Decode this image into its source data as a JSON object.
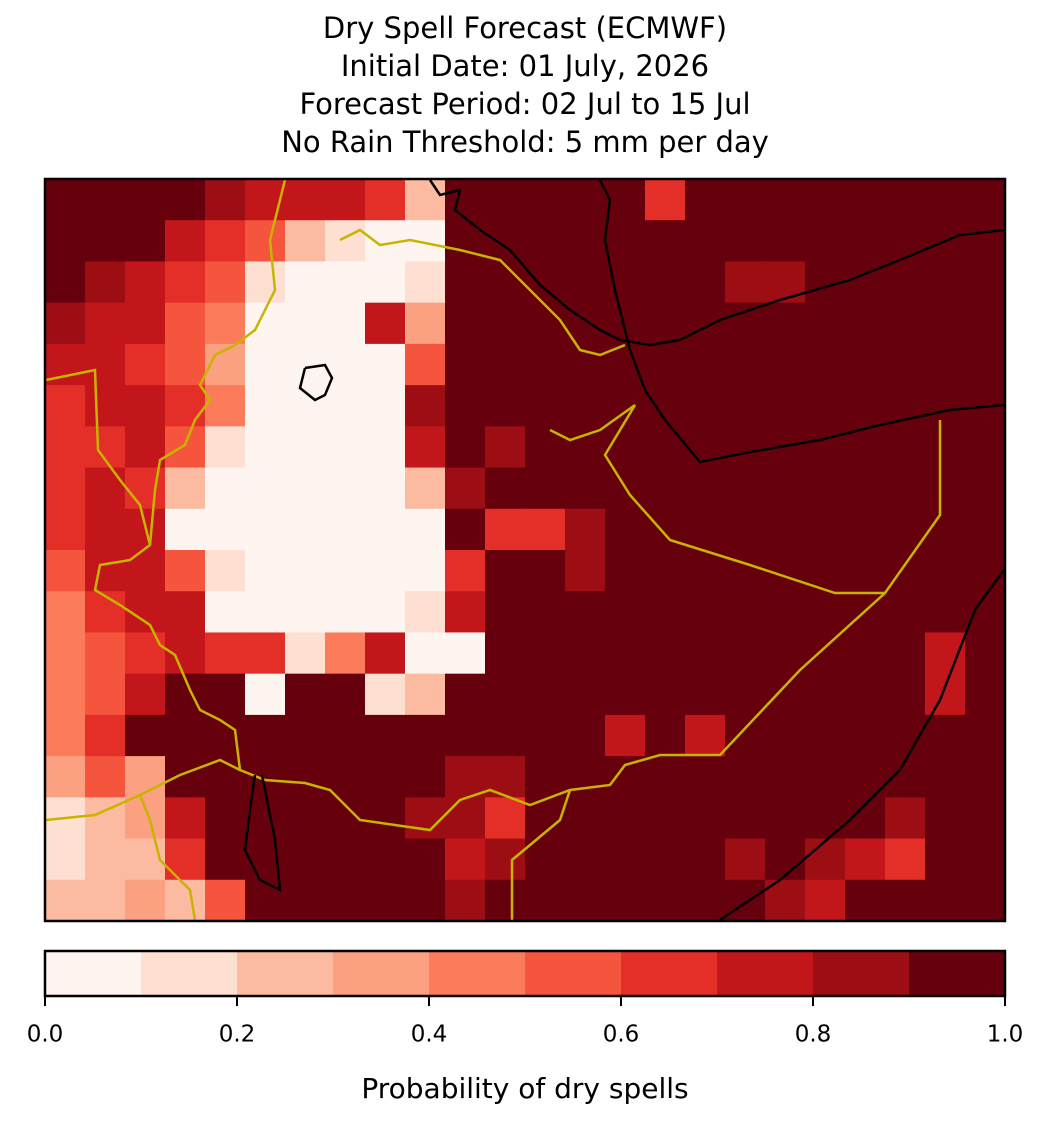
{
  "chart_data": {
    "type": "gridmap",
    "title_lines": [
      "Dry Spell Forecast (ECMWF)",
      "Initial Date: 01 July, 2026",
      "Forecast Period: 02 Jul to 15 Jul",
      "No Rain Threshold: 5 mm per day"
    ],
    "colorbar_label": "Probability of dry spells",
    "levels": [
      0,
      0.1,
      0.2,
      0.3,
      0.4,
      0.5,
      0.6,
      0.7,
      0.8,
      0.9,
      1
    ],
    "colors": [
      "#fff5f0",
      "#fee0d2",
      "#fcbba1",
      "#fca082",
      "#fb7b5b",
      "#f5553d",
      "#e32f27",
      "#c2161b",
      "#9d0d14",
      "#67000d"
    ],
    "clim": [
      0,
      1
    ],
    "cticks": [
      {
        "value": 0,
        "label": "0.0"
      },
      0.2,
      0.4,
      0.6,
      0.8,
      {
        "value": 1,
        "label": "1.0"
      }
    ],
    "grid": [
      [
        0.95,
        0.95,
        0.95,
        0.95,
        0.85,
        0.75,
        0.75,
        0.75,
        0.65,
        0.25,
        0.95,
        0.95,
        0.95,
        0.95,
        0.95,
        0.65,
        0.95,
        0.95,
        0.95,
        0.95,
        0.95,
        0.95,
        0.95,
        0.95
      ],
      [
        0.95,
        0.95,
        0.95,
        0.75,
        0.65,
        0.55,
        0.25,
        0.15,
        0.05,
        0.05,
        0.95,
        0.95,
        0.95,
        0.95,
        0.95,
        0.95,
        0.95,
        0.95,
        0.95,
        0.95,
        0.95,
        0.95,
        0.95,
        0.95
      ],
      [
        0.95,
        0.85,
        0.75,
        0.65,
        0.55,
        0.15,
        0.05,
        0.05,
        0.05,
        0.15,
        0.95,
        0.95,
        0.95,
        0.95,
        0.95,
        0.95,
        0.95,
        0.85,
        0.85,
        0.95,
        0.95,
        0.95,
        0.95,
        0.95
      ],
      [
        0.85,
        0.75,
        0.75,
        0.55,
        0.45,
        0.05,
        0.05,
        0.05,
        0.75,
        0.35,
        0.95,
        0.95,
        0.95,
        0.95,
        0.95,
        0.95,
        0.95,
        0.95,
        0.95,
        0.95,
        0.95,
        0.95,
        0.95,
        0.95
      ],
      [
        0.75,
        0.75,
        0.65,
        0.55,
        0.35,
        0.05,
        0.05,
        0.05,
        0.05,
        0.55,
        0.95,
        0.95,
        0.95,
        0.95,
        0.95,
        0.95,
        0.95,
        0.95,
        0.95,
        0.95,
        0.95,
        0.95,
        0.95,
        0.95
      ],
      [
        0.65,
        0.75,
        0.75,
        0.65,
        0.45,
        0.05,
        0.05,
        0.05,
        0.05,
        0.85,
        0.95,
        0.95,
        0.95,
        0.95,
        0.95,
        0.95,
        0.95,
        0.95,
        0.95,
        0.95,
        0.95,
        0.95,
        0.95,
        0.95
      ],
      [
        0.65,
        0.65,
        0.75,
        0.55,
        0.15,
        0.05,
        0.05,
        0.05,
        0.05,
        0.75,
        0.95,
        0.85,
        0.95,
        0.95,
        0.95,
        0.95,
        0.95,
        0.95,
        0.95,
        0.95,
        0.95,
        0.95,
        0.95,
        0.95
      ],
      [
        0.65,
        0.75,
        0.65,
        0.25,
        0.05,
        0.05,
        0.05,
        0.05,
        0.05,
        0.25,
        0.85,
        0.95,
        0.95,
        0.95,
        0.95,
        0.95,
        0.95,
        0.95,
        0.95,
        0.95,
        0.95,
        0.95,
        0.95,
        0.95
      ],
      [
        0.65,
        0.75,
        0.75,
        0.05,
        0.05,
        0.05,
        0.05,
        0.05,
        0.05,
        0.05,
        0.95,
        0.65,
        0.65,
        0.85,
        0.95,
        0.95,
        0.95,
        0.95,
        0.95,
        0.95,
        0.95,
        0.95,
        0.95,
        0.95
      ],
      [
        0.55,
        0.75,
        0.75,
        0.55,
        0.15,
        0.05,
        0.05,
        0.05,
        0.05,
        0.05,
        0.65,
        0.95,
        0.95,
        0.85,
        0.95,
        0.95,
        0.95,
        0.95,
        0.95,
        0.95,
        0.95,
        0.95,
        0.95,
        0.95
      ],
      [
        0.45,
        0.65,
        0.75,
        0.75,
        0.05,
        0.05,
        0.05,
        0.05,
        0.05,
        0.15,
        0.75,
        0.95,
        0.95,
        0.95,
        0.95,
        0.95,
        0.95,
        0.95,
        0.95,
        0.95,
        0.95,
        0.95,
        0.95,
        0.95
      ],
      [
        0.45,
        0.55,
        0.65,
        0.75,
        0.65,
        0.65,
        0.15,
        0.45,
        0.75,
        0.05,
        0.05,
        0.95,
        0.95,
        0.95,
        0.95,
        0.95,
        0.95,
        0.95,
        0.95,
        0.95,
        0.95,
        0.95,
        0.75,
        0.95
      ],
      [
        0.45,
        0.55,
        0.75,
        0.95,
        0.95,
        0.05,
        0.95,
        0.95,
        0.15,
        0.25,
        0.95,
        0.95,
        0.95,
        0.95,
        0.95,
        0.95,
        0.95,
        0.95,
        0.95,
        0.95,
        0.95,
        0.95,
        0.75,
        0.95
      ],
      [
        0.45,
        0.65,
        0.95,
        0.95,
        0.95,
        0.95,
        0.95,
        0.95,
        0.95,
        0.95,
        0.95,
        0.95,
        0.95,
        0.95,
        0.75,
        0.95,
        0.75,
        0.95,
        0.95,
        0.95,
        0.95,
        0.95,
        0.95,
        0.95
      ],
      [
        0.35,
        0.55,
        0.35,
        0.95,
        0.95,
        0.95,
        0.95,
        0.95,
        0.95,
        0.95,
        0.85,
        0.85,
        0.95,
        0.95,
        0.95,
        0.95,
        0.95,
        0.95,
        0.95,
        0.95,
        0.95,
        0.95,
        0.95,
        0.95
      ],
      [
        0.15,
        0.25,
        0.35,
        0.75,
        0.95,
        0.95,
        0.95,
        0.95,
        0.95,
        0.85,
        0.85,
        0.65,
        0.95,
        0.95,
        0.95,
        0.95,
        0.95,
        0.95,
        0.95,
        0.95,
        0.95,
        0.85,
        0.95,
        0.95
      ],
      [
        0.15,
        0.25,
        0.25,
        0.65,
        0.95,
        0.95,
        0.95,
        0.95,
        0.95,
        0.95,
        0.75,
        0.85,
        0.95,
        0.95,
        0.95,
        0.95,
        0.95,
        0.85,
        0.95,
        0.85,
        0.75,
        0.65,
        0.95,
        0.95
      ],
      [
        0.25,
        0.25,
        0.35,
        0.25,
        0.55,
        0.95,
        0.95,
        0.95,
        0.95,
        0.95,
        0.85,
        0.95,
        0.95,
        0.95,
        0.95,
        0.95,
        0.95,
        0.95,
        0.85,
        0.75,
        0.95,
        0.95,
        0.95,
        0.95
      ]
    ]
  }
}
